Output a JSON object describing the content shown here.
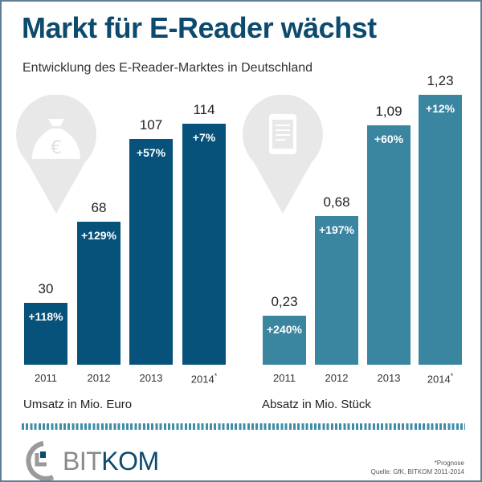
{
  "title": "Markt für E-Reader wächst",
  "subtitle": "Entwicklung des E-Reader-Marktes in Deutschland",
  "chart_data": [
    {
      "type": "bar",
      "categories": [
        "2011",
        "2012",
        "2013",
        "2014*"
      ],
      "values": [
        30,
        68,
        107,
        114
      ],
      "labels": [
        "30",
        "68",
        "107",
        "114"
      ],
      "growth": [
        "+118%",
        "+129%",
        "+57%",
        "+7%"
      ],
      "xlabel": "Umsatz in Mio. Euro",
      "ylim": [
        0,
        114
      ],
      "color": "#07527a",
      "icon": "money-bag-euro-icon"
    },
    {
      "type": "bar",
      "categories": [
        "2011",
        "2012",
        "2013",
        "2014*"
      ],
      "values": [
        0.23,
        0.68,
        1.09,
        1.23
      ],
      "labels": [
        "0,23",
        "0,68",
        "1,09",
        "1,23"
      ],
      "growth": [
        "+240%",
        "+197%",
        "+60%",
        "+12%"
      ],
      "xlabel": "Absatz in Mio. Stück",
      "ylim": [
        0,
        1.23
      ],
      "color": "#3a85a0",
      "icon": "tablet-icon"
    }
  ],
  "footnote": "*Prognose",
  "source": "Quelle: GfK, BITKOM 2011-2014",
  "logo": {
    "part1": "BIT",
    "part2": "KOM"
  }
}
